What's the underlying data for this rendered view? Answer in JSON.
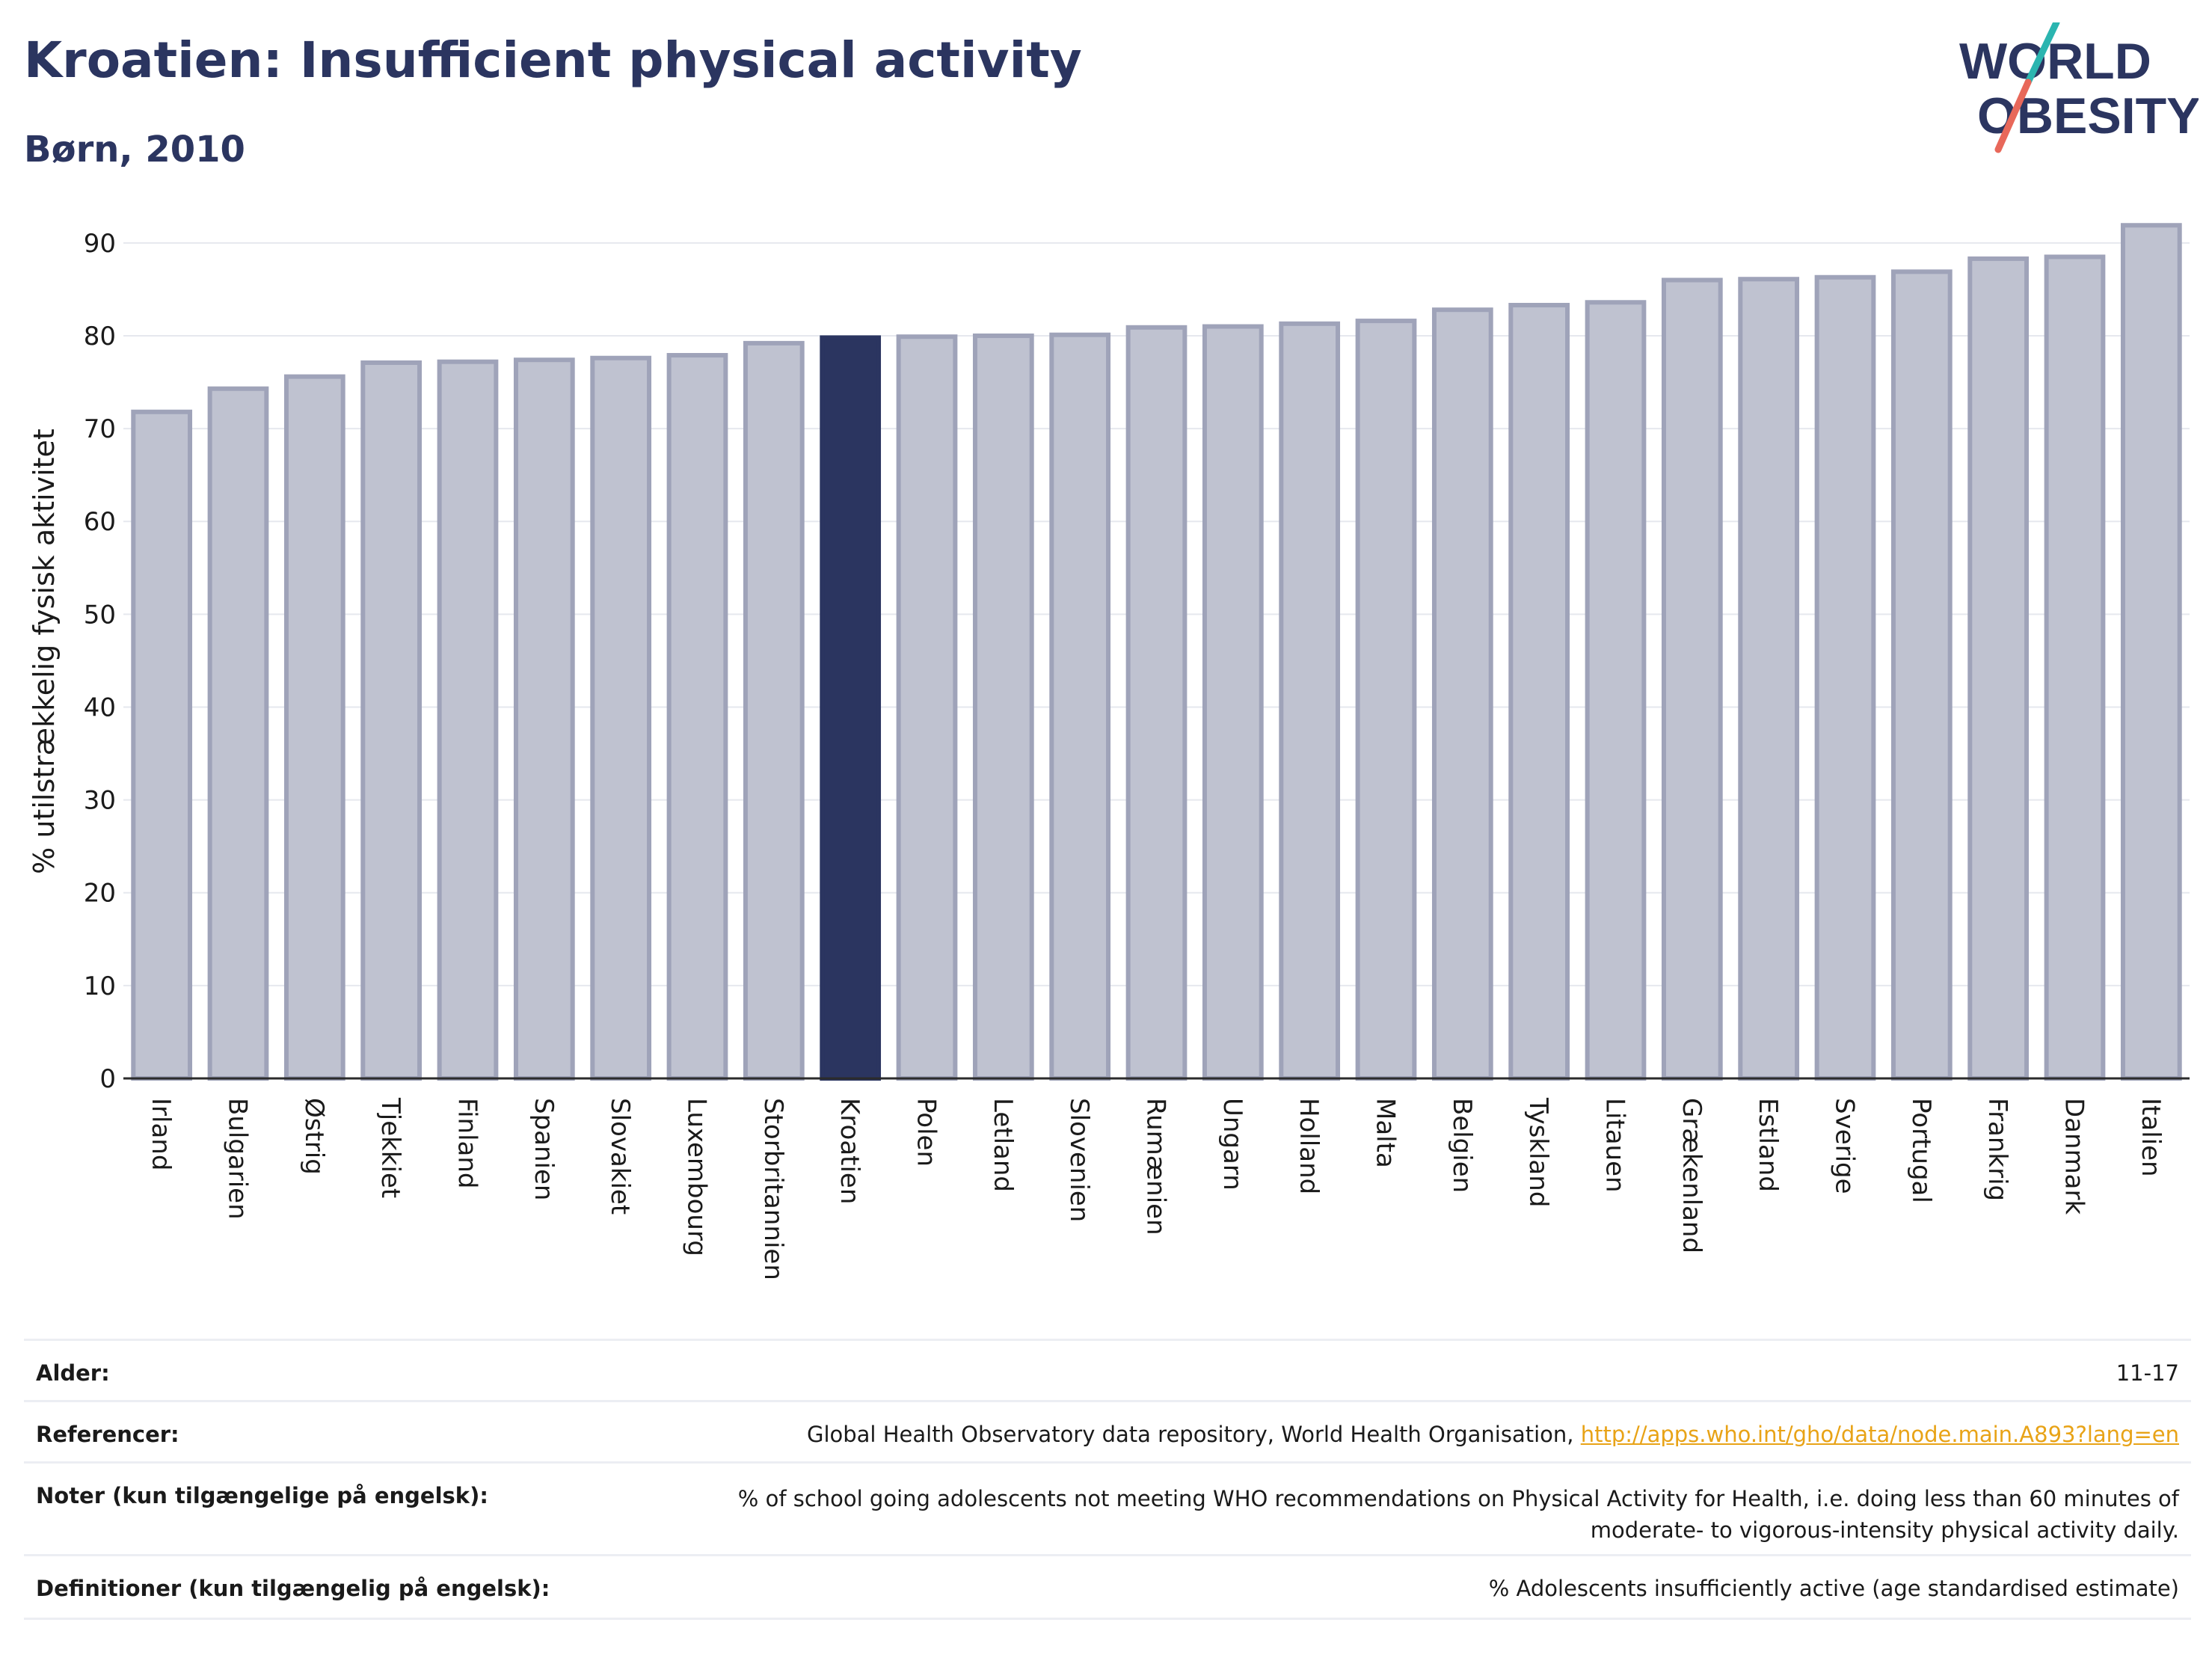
{
  "header": {
    "title": "Kroatien: Insufficient physical activity",
    "subtitle": "Børn, 2010"
  },
  "logo": {
    "line1": "WORLD",
    "line2": "OBESITY",
    "colors": {
      "text": "#2b3560",
      "slash_teal": "#2bb5b0",
      "slash_coral": "#e8685a"
    }
  },
  "chart_data": {
    "type": "bar",
    "title": "Kroatien: Insufficient physical activity",
    "subtitle": "Børn, 2010",
    "xlabel": "",
    "ylabel": "% utilstrækkelig fysisk aktivitet",
    "ylim": [
      0,
      92
    ],
    "yticks": [
      0,
      10,
      20,
      30,
      40,
      50,
      60,
      70,
      80,
      90
    ],
    "grid": true,
    "highlight": "Kroatien",
    "colors": {
      "bar": "#bfc2d0",
      "bar_edge": "#9fa3b9",
      "highlight": "#2b3560"
    },
    "categories": [
      "Irland",
      "Bulgarien",
      "Østrig",
      "Tjekkiet",
      "Finland",
      "Spanien",
      "Slovakiet",
      "Luxembourg",
      "Storbritannien",
      "Kroatien",
      "Polen",
      "Letland",
      "Slovenien",
      "Rumænien",
      "Ungarn",
      "Holland",
      "Malta",
      "Belgien",
      "Tyskland",
      "Litauen",
      "Grækenland",
      "Estland",
      "Sverige",
      "Portugal",
      "Frankrig",
      "Danmark",
      "Italien"
    ],
    "values": [
      71.8,
      74.3,
      75.6,
      77.1,
      77.2,
      77.4,
      77.6,
      77.9,
      79.2,
      79.8,
      79.9,
      80.0,
      80.1,
      80.9,
      81.0,
      81.3,
      81.6,
      82.8,
      83.3,
      83.6,
      86.0,
      86.1,
      86.3,
      86.9,
      88.3,
      88.5,
      91.9
    ]
  },
  "info": {
    "age_label": "Alder:",
    "age_value": "11-17",
    "ref_label": "Referencer:",
    "ref_text": "Global Health Observatory data repository, World Health Organisation, ",
    "ref_link": "http://apps.who.int/gho/data/node.main.A893?lang=en",
    "notes_label": "Noter (kun tilgængelige på engelsk):",
    "notes_line1": "% of school going adolescents not meeting WHO recommendations on Physical Activity for Health, i.e. doing less than 60 minutes of",
    "notes_line2": "moderate- to vigorous-intensity physical activity daily.",
    "def_label": "Definitioner (kun tilgængelig på engelsk):",
    "def_value": "% Adolescents insufficiently active (age standardised estimate)"
  }
}
